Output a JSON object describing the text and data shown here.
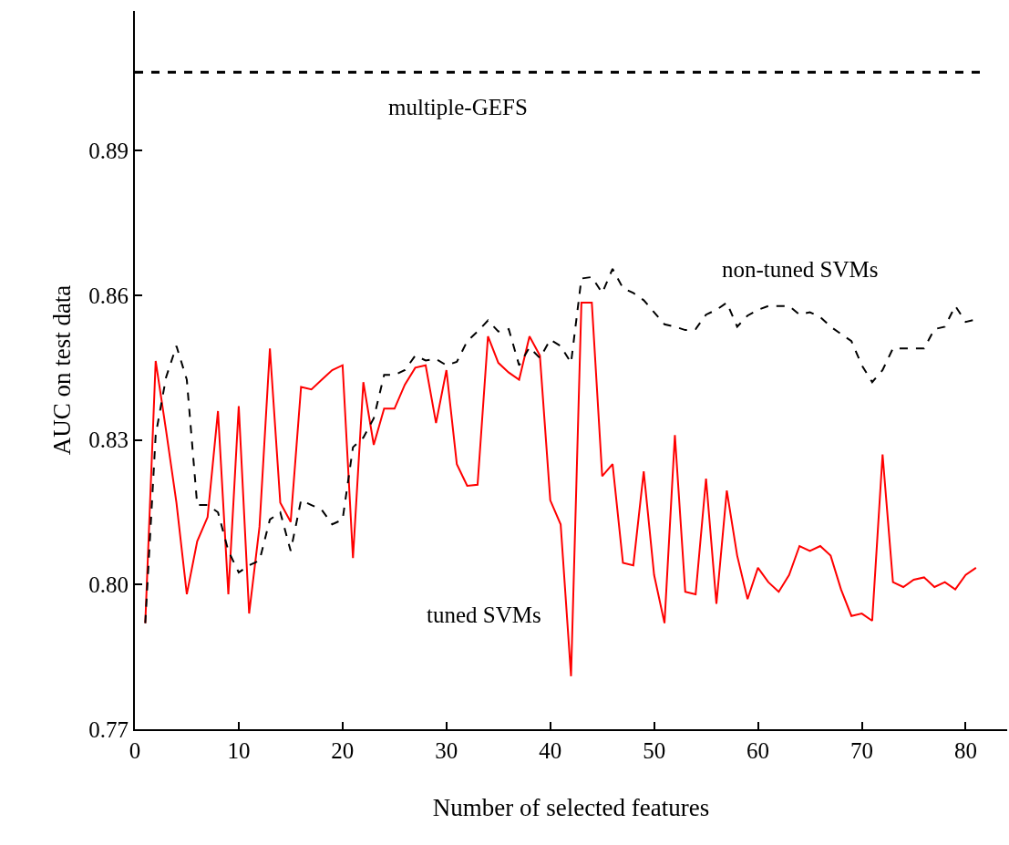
{
  "chart_data": {
    "type": "line",
    "xlabel": "Number of selected features",
    "ylabel": "AUC on test data",
    "x": [
      1,
      2,
      3,
      4,
      5,
      6,
      7,
      8,
      9,
      10,
      11,
      12,
      13,
      14,
      15,
      16,
      17,
      18,
      19,
      20,
      21,
      22,
      23,
      24,
      25,
      26,
      27,
      28,
      29,
      30,
      31,
      32,
      33,
      34,
      35,
      36,
      37,
      38,
      39,
      40,
      41,
      42,
      43,
      44,
      45,
      46,
      47,
      48,
      49,
      50,
      51,
      52,
      53,
      54,
      55,
      56,
      57,
      58,
      59,
      60,
      61,
      62,
      63,
      64,
      65,
      66,
      67,
      68,
      69,
      70,
      71,
      72,
      73,
      74,
      75,
      76,
      77,
      78,
      79,
      80,
      81
    ],
    "series": [
      {
        "name": "tuned SVMs",
        "color": "#ff0000",
        "line_style": "solid",
        "values": [
          0.792,
          0.8464,
          0.832,
          0.817,
          0.798,
          0.809,
          0.814,
          0.836,
          0.798,
          0.837,
          0.794,
          0.812,
          0.849,
          0.817,
          0.813,
          0.841,
          0.8405,
          0.8425,
          0.8445,
          0.8455,
          0.8055,
          0.842,
          0.829,
          0.8365,
          0.8365,
          0.8415,
          0.845,
          0.8455,
          0.8335,
          0.8445,
          0.825,
          0.8205,
          0.8207,
          0.8515,
          0.846,
          0.844,
          0.8425,
          0.8515,
          0.8475,
          0.8175,
          0.8125,
          0.781,
          0.8585,
          0.8585,
          0.8225,
          0.825,
          0.8045,
          0.804,
          0.8235,
          0.802,
          0.792,
          0.831,
          0.7985,
          0.798,
          0.822,
          0.796,
          0.8195,
          0.806,
          0.797,
          0.8035,
          0.8005,
          0.7985,
          0.802,
          0.808,
          0.807,
          0.808,
          0.806,
          0.799,
          0.7935,
          0.794,
          0.7925,
          0.827,
          0.8005,
          0.7995,
          0.801,
          0.8015,
          0.7995,
          0.8005,
          0.799,
          0.802,
          0.8035
        ]
      },
      {
        "name": "non-tuned SVMs",
        "color": "#000000",
        "line_style": "dashed",
        "values": [
          0.792,
          0.831,
          0.843,
          0.8495,
          0.8425,
          0.8165,
          0.8165,
          0.815,
          0.807,
          0.8025,
          0.804,
          0.805,
          0.8135,
          0.815,
          0.807,
          0.8175,
          0.8165,
          0.8155,
          0.8125,
          0.8135,
          0.8285,
          0.8305,
          0.8345,
          0.8435,
          0.8435,
          0.8445,
          0.8475,
          0.8465,
          0.8468,
          0.8455,
          0.8462,
          0.8505,
          0.8525,
          0.8548,
          0.8525,
          0.853,
          0.8455,
          0.8492,
          0.847,
          0.8508,
          0.8495,
          0.846,
          0.8635,
          0.8638,
          0.8605,
          0.8655,
          0.8615,
          0.8605,
          0.859,
          0.8565,
          0.854,
          0.8535,
          0.8528,
          0.853,
          0.856,
          0.857,
          0.8585,
          0.8535,
          0.8558,
          0.857,
          0.8578,
          0.8578,
          0.8578,
          0.856,
          0.8565,
          0.8555,
          0.8535,
          0.852,
          0.8505,
          0.8455,
          0.842,
          0.8445,
          0.849,
          0.849,
          0.849,
          0.849,
          0.853,
          0.8535,
          0.8578,
          0.8545,
          0.855
        ]
      }
    ],
    "ref_lines": [
      {
        "axis": "y",
        "value": 0.9063,
        "label": "multiple-GEFS",
        "color": "#000000",
        "line_style": "dashed"
      }
    ],
    "xlim": [
      0,
      84
    ],
    "xticks": [
      0,
      10,
      20,
      30,
      40,
      50,
      60,
      70,
      80
    ],
    "ylim": [
      0.77,
      0.919
    ],
    "yticks": [
      {
        "value": 0.77,
        "label": "0.77"
      },
      {
        "value": 0.8,
        "label": "0.80"
      },
      {
        "value": 0.83,
        "label": "0.83"
      },
      {
        "value": 0.86,
        "label": "0.86"
      },
      {
        "value": 0.89,
        "label": "0.89"
      }
    ],
    "legend": false,
    "marker": "none"
  }
}
